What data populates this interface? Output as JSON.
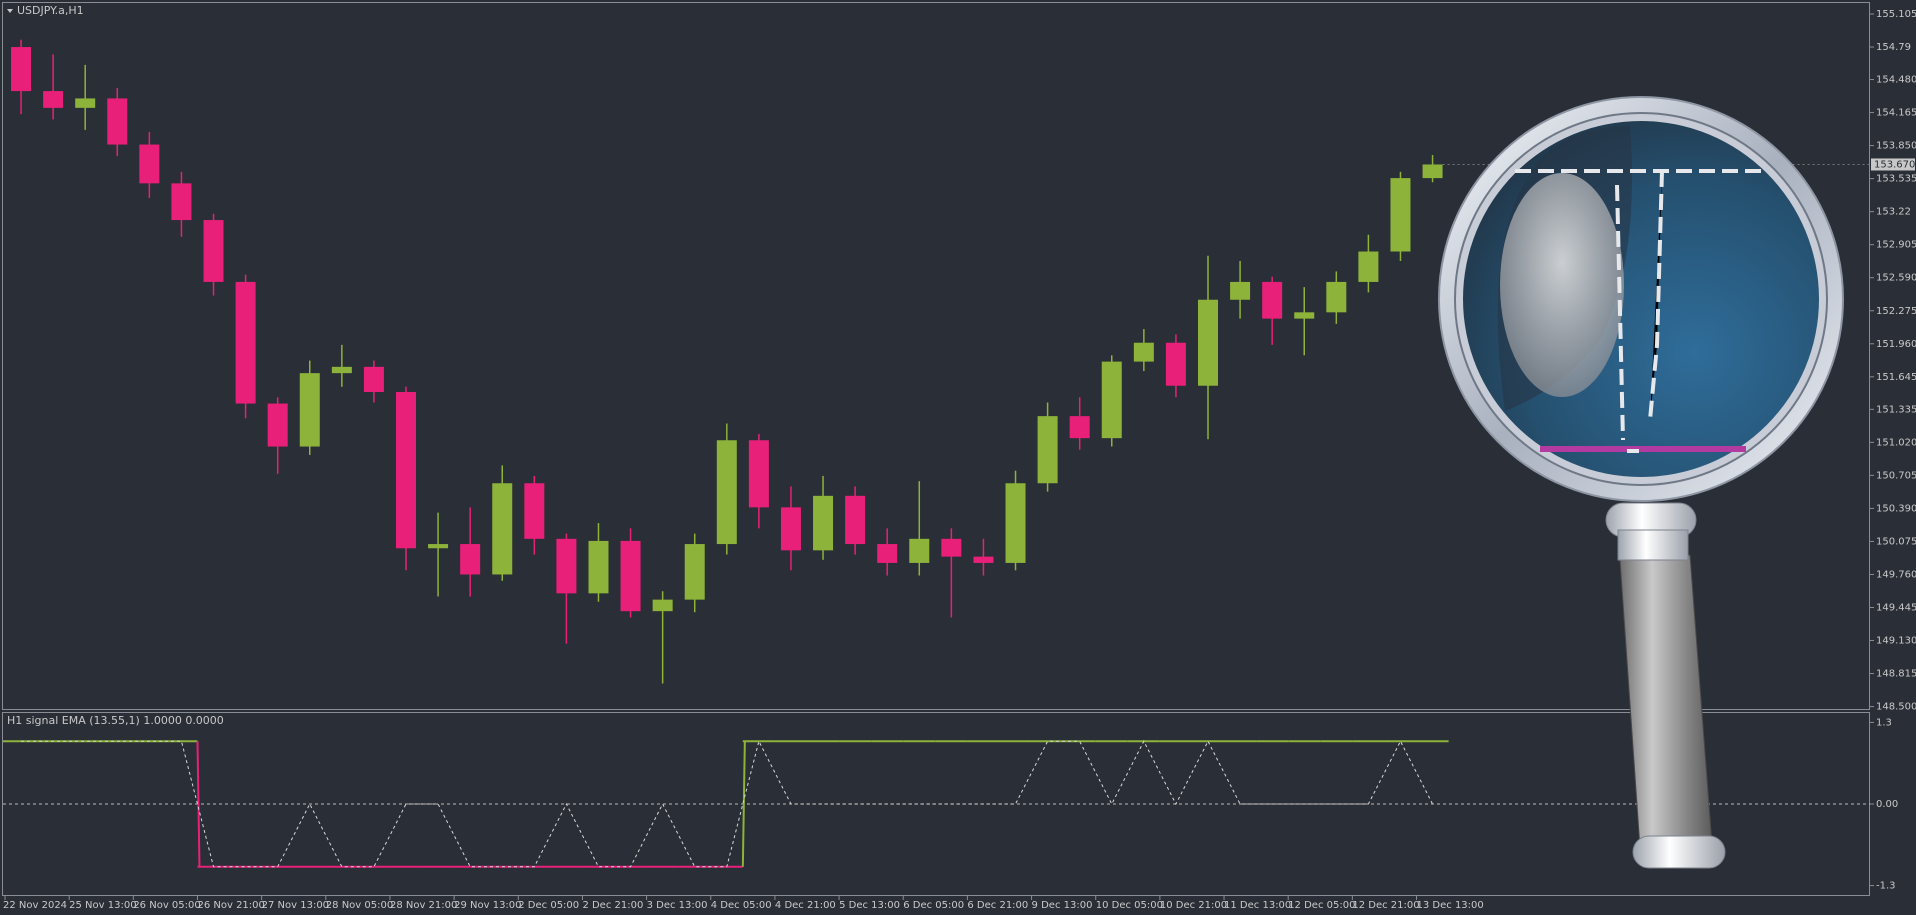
{
  "chart_data": [
    {
      "type": "candlestick",
      "title": "USDJPY.a,H1",
      "categories": [
        "22 Nov 2024",
        null,
        "25 Nov 13:00",
        null,
        "26 Nov 05:00",
        null,
        "26 Nov 21:00",
        null,
        "27 Nov 13:00",
        null,
        "28 Nov 05:00",
        null,
        "28 Nov 21:00",
        null,
        "29 Nov 13:00",
        null,
        "2 Dec 05:00",
        null,
        "2 Dec 21:00",
        null,
        "3 Dec 13:00",
        null,
        "4 Dec 05:00",
        null,
        "4 Dec 21:00",
        null,
        "5 Dec 13:00",
        null,
        "6 Dec 05:00",
        null,
        "6 Dec 21:00",
        null,
        "9 Dec 13:00",
        null,
        "10 Dec 05:00",
        null,
        "10 Dec 21:00",
        null,
        "11 Dec 13:00",
        null,
        "12 Dec 05:00",
        null,
        "12 Dec 21:00",
        null,
        "13 Dec 13:00"
      ],
      "open": [
        154.79,
        154.37,
        154.21,
        154.3,
        153.86,
        153.49,
        153.14,
        152.55,
        151.39,
        150.98,
        151.68,
        151.74,
        151.5,
        150.01,
        150.05,
        149.76,
        150.63,
        150.1,
        149.58,
        150.08,
        149.41,
        149.52,
        150.05,
        151.04,
        150.4,
        149.99,
        150.51,
        150.05,
        149.87,
        150.1,
        149.93,
        149.87,
        150.63,
        151.27,
        151.06,
        151.79,
        151.97,
        151.56,
        152.38,
        152.55,
        152.2,
        152.26,
        152.55,
        152.84,
        153.54
      ],
      "high": [
        154.86,
        154.72,
        154.62,
        154.4,
        153.98,
        153.6,
        153.2,
        152.62,
        151.45,
        151.8,
        151.95,
        151.8,
        151.55,
        150.35,
        150.4,
        150.8,
        150.7,
        150.15,
        150.25,
        150.2,
        149.6,
        150.15,
        151.2,
        151.1,
        150.6,
        150.7,
        150.6,
        150.2,
        150.65,
        150.2,
        150.1,
        150.75,
        151.4,
        151.45,
        151.85,
        152.1,
        152.05,
        152.8,
        152.75,
        152.6,
        152.5,
        152.65,
        153.0,
        153.6,
        153.76
      ],
      "low": [
        154.15,
        154.1,
        154.0,
        153.75,
        153.35,
        152.98,
        152.42,
        151.25,
        150.72,
        150.9,
        151.55,
        151.4,
        149.8,
        149.55,
        149.55,
        149.7,
        149.95,
        149.1,
        149.5,
        149.35,
        148.72,
        149.4,
        149.95,
        150.2,
        149.8,
        149.9,
        149.95,
        149.75,
        149.75,
        149.35,
        149.75,
        149.8,
        150.55,
        150.95,
        150.98,
        151.7,
        151.45,
        151.05,
        152.2,
        151.95,
        151.85,
        152.15,
        152.45,
        152.75,
        153.5
      ],
      "close": [
        154.37,
        154.21,
        154.3,
        153.86,
        153.49,
        153.14,
        152.55,
        151.39,
        150.98,
        151.68,
        151.74,
        151.5,
        150.01,
        150.05,
        149.76,
        150.63,
        150.1,
        149.58,
        150.08,
        149.41,
        149.52,
        150.05,
        151.04,
        150.4,
        149.99,
        150.51,
        150.05,
        149.87,
        150.1,
        149.93,
        149.87,
        150.63,
        151.27,
        151.06,
        151.79,
        151.97,
        151.56,
        152.38,
        152.55,
        152.2,
        152.26,
        152.55,
        152.84,
        153.54,
        153.67
      ],
      "up_color": "#8db33a",
      "down_color": "#e8207a",
      "ylim": [
        148.477,
        155.21
      ],
      "yticks": [
        155.105,
        154.79,
        {
          "value": 154.48,
          "label": "154.480"
        },
        154.165,
        {
          "value": 153.85,
          "label": "153.850"
        },
        153.535,
        153.22,
        152.905,
        {
          "value": 152.59,
          "label": "152.590"
        },
        152.275,
        {
          "value": 151.96,
          "label": "151.960"
        },
        151.645,
        151.335,
        {
          "value": 151.02,
          "label": "151.020"
        },
        150.705,
        {
          "value": 150.39,
          "label": "150.390"
        },
        150.075,
        {
          "value": 149.76,
          "label": "149.760"
        },
        149.445,
        {
          "value": 149.13,
          "label": "149.130"
        },
        148.815,
        {
          "value": 148.5,
          "label": "148.500"
        }
      ],
      "last_price": {
        "value": 153.67,
        "label": "153.670"
      }
    },
    {
      "type": "line",
      "title": "H1 signal EMA (13.55,1) 1.0000 0.0000",
      "series": [
        {
          "up_color": "#8db33a",
          "down_color": "#e8207a",
          "values": [
            1,
            1,
            1,
            1,
            1,
            1,
            -1,
            -1,
            -1,
            -1,
            -1,
            -1,
            -1,
            -1,
            -1,
            -1,
            -1,
            -1,
            -1,
            -1,
            -1,
            -1,
            -1,
            1,
            1,
            1,
            1,
            1,
            1,
            1,
            1,
            1,
            1,
            1,
            1,
            1,
            1,
            1,
            1,
            1,
            1,
            1,
            1,
            1,
            1
          ]
        },
        {
          "color": "#d8d8d8",
          "dashed": true,
          "values": [
            1,
            1,
            1,
            1,
            1,
            1,
            -1,
            -1,
            -1,
            0,
            -1,
            -1,
            0,
            0,
            -1,
            -1,
            -1,
            0,
            -1,
            -1,
            0,
            -1,
            -1,
            1,
            0,
            0,
            0,
            0,
            0,
            0,
            0,
            0,
            1,
            1,
            0,
            1,
            0,
            1,
            0,
            0,
            0,
            0,
            0,
            1,
            0
          ]
        }
      ],
      "ylim": [
        -1.45,
        1.45
      ],
      "yticks": [
        1.3,
        {
          "value": 0,
          "label": "0.00"
        },
        -1.3
      ],
      "zero_line": true
    }
  ]
}
